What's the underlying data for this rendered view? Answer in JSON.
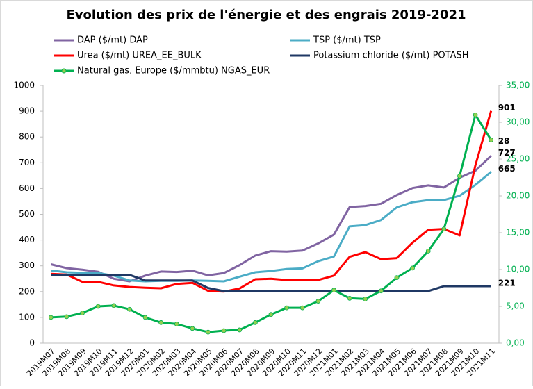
{
  "chart_data": {
    "type": "line",
    "title": "Evolution des prix de l'énergie et des engrais 2019-2021",
    "categories": [
      "2019M07",
      "2019M08",
      "2019M09",
      "2019M10",
      "2019M11",
      "2019M12",
      "2020M01",
      "2020M02",
      "2020M03",
      "2020M04",
      "2020M05",
      "2020M06",
      "2020M07",
      "2020M08",
      "2020M09",
      "2020M10",
      "2020M11",
      "2020M12",
      "2021M01",
      "2021M02",
      "2021M03",
      "2021M04",
      "2021M05",
      "2021M06",
      "2021M07",
      "2021M08",
      "2021M09",
      "2021M10",
      "2021M11"
    ],
    "series": [
      {
        "name": "DAP ($/mt) DAP",
        "color": "#8064a2",
        "values": [
          306,
          291,
          285,
          277,
          250,
          240,
          262,
          278,
          276,
          281,
          263,
          272,
          303,
          340,
          357,
          355,
          359,
          387,
          421,
          528,
          532,
          541,
          575,
          602,
          612,
          604,
          642,
          669,
          727
        ]
      },
      {
        "name": "TSP ($/mt) TSP",
        "color": "#4bacc6",
        "values": [
          282,
          275,
          273,
          272,
          262,
          243,
          240,
          242,
          242,
          243,
          242,
          240,
          258,
          275,
          280,
          288,
          290,
          318,
          336,
          453,
          458,
          478,
          527,
          547,
          555,
          555,
          572,
          614,
          665
        ]
      },
      {
        "name": "Urea  ($/mt) UREA_EE_BULK",
        "color": "#ff0000",
        "values": [
          269,
          266,
          238,
          238,
          224,
          218,
          215,
          213,
          230,
          234,
          203,
          200,
          212,
          248,
          250,
          245,
          245,
          245,
          262,
          335,
          353,
          326,
          330,
          390,
          440,
          443,
          418,
          690,
          901
        ]
      },
      {
        "name": "Potassium chloride ($/mt) POTASH",
        "color": "#1f3864",
        "values": [
          264,
          265,
          265,
          265,
          265,
          265,
          243,
          243,
          243,
          243,
          214,
          202,
          202,
          202,
          202,
          202,
          202,
          202,
          202,
          202,
          202,
          202,
          202,
          202,
          202,
          221,
          221,
          221,
          221
        ]
      },
      {
        "name": "Natural gas, Europe ($/mmbtu) NGAS_EUR",
        "color": "#00b050",
        "marker_color": "#92d050",
        "axis": "y2",
        "values": [
          3.5,
          3.6,
          4.1,
          5.0,
          5.1,
          4.6,
          3.5,
          2.8,
          2.6,
          2.0,
          1.5,
          1.7,
          1.8,
          2.8,
          3.9,
          4.8,
          4.8,
          5.7,
          7.2,
          6.1,
          6.0,
          7.1,
          8.9,
          10.2,
          12.5,
          15.5,
          22.7,
          31.0,
          27.6
        ],
        "value_labels": [
          null,
          null,
          null,
          null,
          null,
          null,
          null,
          null,
          null,
          null,
          null,
          null,
          null,
          null,
          null,
          null,
          null,
          null,
          null,
          null,
          null,
          null,
          null,
          null,
          null,
          null,
          null,
          null,
          "28"
        ]
      }
    ],
    "ylim": [
      0,
      1000
    ],
    "yticks": [
      0,
      100,
      200,
      300,
      400,
      500,
      600,
      700,
      800,
      900,
      1000
    ],
    "y2lim": [
      0,
      35
    ],
    "y2ticks": [
      {
        "value": 0,
        "label": "0,00"
      },
      {
        "value": 5,
        "label": "5,00"
      },
      {
        "value": 10,
        "label": "10,00"
      },
      {
        "value": 15,
        "label": "15,00"
      },
      {
        "value": 20,
        "label": "20,00"
      },
      {
        "value": 25,
        "label": "25,00"
      },
      {
        "value": 30,
        "label": "30,00"
      },
      {
        "value": 35,
        "label": "35,00"
      }
    ],
    "y2color": "#00b050",
    "end_labels": true,
    "grid": false
  }
}
